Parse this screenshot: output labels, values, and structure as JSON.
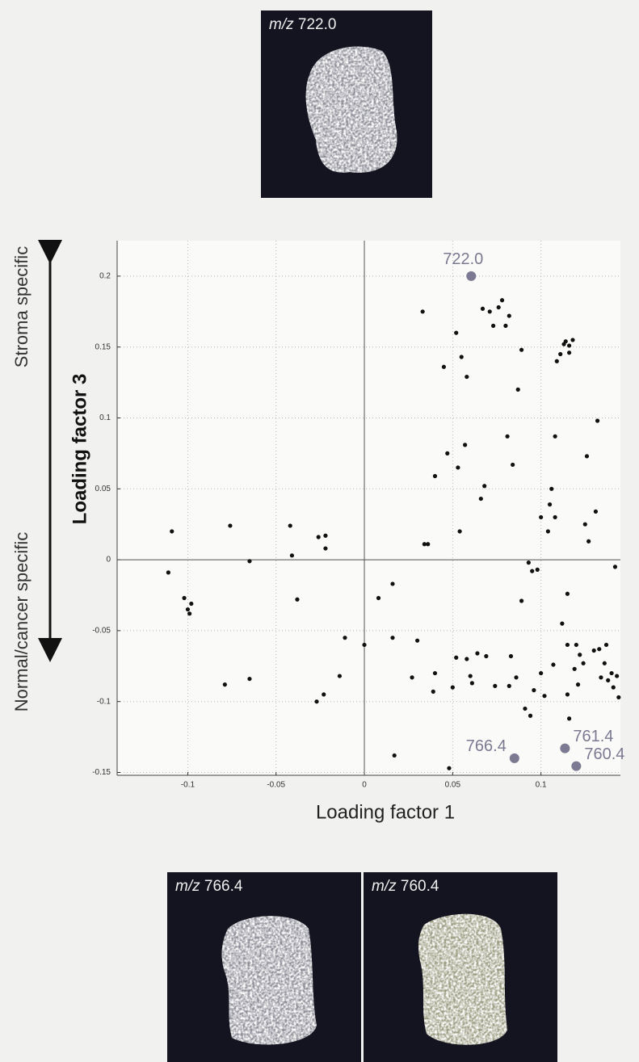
{
  "chart_data": {
    "type": "scatter",
    "xlabel": "Loading factor 1",
    "ylabel": "Loading factor 3",
    "upper_side_label": "Stroma specific",
    "lower_side_label": "Normal/cancer specific",
    "xlim": [
      -0.14,
      0.145
    ],
    "ylim": [
      -0.152,
      0.225
    ],
    "xticks": [
      -0.1,
      -0.05,
      0,
      0.05,
      0.1
    ],
    "yticks": [
      -0.15,
      -0.1,
      -0.05,
      0,
      0.05,
      0.1,
      0.15,
      0.2
    ],
    "grid": true,
    "series": [
      {
        "color": "#111111",
        "x": [
          -0.109,
          -0.111,
          -0.102,
          -0.1,
          -0.099,
          -0.098,
          -0.076,
          -0.079,
          -0.065,
          -0.065,
          -0.042,
          -0.041,
          -0.038,
          -0.026,
          -0.022,
          -0.022,
          -0.027,
          -0.023,
          -0.014,
          -0.011,
          0,
          0.008,
          0.016,
          0.016,
          0.017,
          0.027,
          0.03,
          0.033,
          0.034,
          0.036,
          0.04,
          0.04,
          0.039,
          0.045,
          0.047,
          0.048,
          0.05,
          0.052,
          0.052,
          0.053,
          0.054,
          0.055,
          0.057,
          0.058,
          0.058,
          0.06,
          0.061,
          0.064,
          0.066,
          0.067,
          0.068,
          0.069,
          0.071,
          0.073,
          0.074,
          0.076,
          0.078,
          0.08,
          0.081,
          0.082,
          0.084,
          0.083,
          0.082,
          0.086,
          0.087,
          0.089,
          0.089,
          0.091,
          0.093,
          0.094,
          0.095,
          0.096,
          0.098,
          0.1,
          0.1,
          0.102,
          0.104,
          0.105,
          0.106,
          0.107,
          0.108,
          0.109,
          0.108,
          0.111,
          0.112,
          0.113,
          0.114,
          0.116,
          0.116,
          0.118,
          0.115,
          0.116,
          0.115,
          0.115,
          0.119,
          0.12,
          0.121,
          0.122,
          0.124,
          0.125,
          0.126,
          0.127,
          0.13,
          0.131,
          0.132,
          0.133,
          0.134,
          0.136,
          0.137,
          0.138,
          0.14,
          0.141,
          0.142,
          0.143,
          0.144
        ],
        "values": [
          0.02,
          -0.009,
          -0.027,
          -0.035,
          -0.038,
          -0.031,
          0.024,
          -0.088,
          -0.001,
          -0.084,
          0.024,
          0.003,
          -0.028,
          0.016,
          0.017,
          0.008,
          -0.1,
          -0.095,
          -0.082,
          -0.055,
          -0.06,
          -0.027,
          -0.017,
          -0.055,
          -0.138,
          -0.083,
          -0.057,
          0.175,
          0.011,
          0.011,
          0.059,
          -0.08,
          -0.093,
          0.136,
          0.075,
          -0.147,
          -0.09,
          0.16,
          -0.069,
          0.065,
          0.02,
          0.143,
          0.081,
          -0.07,
          0.129,
          -0.082,
          -0.087,
          -0.066,
          0.043,
          0.177,
          0.052,
          -0.068,
          0.175,
          0.165,
          -0.089,
          0.178,
          0.183,
          0.165,
          0.087,
          0.172,
          0.067,
          -0.068,
          -0.089,
          -0.083,
          0.12,
          0.148,
          -0.029,
          -0.105,
          -0.002,
          -0.11,
          -0.008,
          -0.092,
          -0.007,
          -0.08,
          0.03,
          -0.096,
          0.02,
          0.039,
          0.05,
          -0.074,
          0.087,
          0.14,
          0.03,
          0.145,
          -0.045,
          0.152,
          0.154,
          0.151,
          0.146,
          0.155,
          -0.095,
          -0.112,
          -0.06,
          -0.024,
          -0.077,
          -0.06,
          -0.088,
          -0.067,
          -0.073,
          0.025,
          0.073,
          0.013,
          -0.064,
          0.034,
          0.098,
          -0.063,
          -0.083,
          -0.073,
          -0.06,
          -0.085,
          -0.08,
          -0.09,
          -0.005,
          -0.082,
          -0.097
        ]
      },
      {
        "color": "#7b7a92",
        "x": [
          0.0605,
          0.085,
          0.1136,
          0.12
        ],
        "values": [
          0.2,
          -0.14,
          -0.133,
          -0.1455
        ],
        "labels": [
          "722.0",
          "766.4",
          "761.4",
          "760.4"
        ]
      }
    ]
  },
  "images": [
    {
      "prefix": "m/z",
      "mass": "722.0"
    },
    {
      "prefix": "m/z",
      "mass": "766.4"
    },
    {
      "prefix": "m/z",
      "mass": "760.4"
    }
  ]
}
